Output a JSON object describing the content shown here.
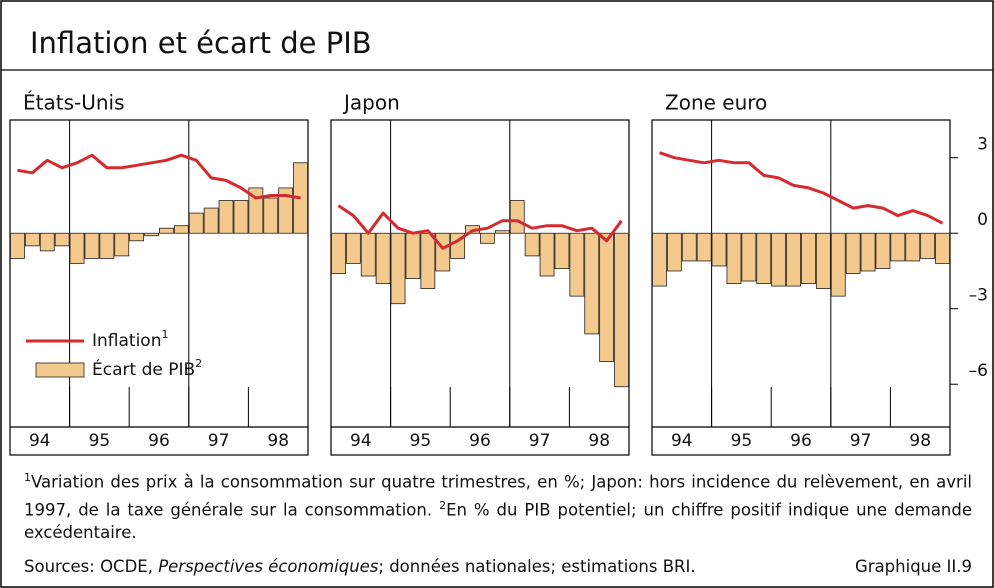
{
  "title": "Inflation et écart de PIB",
  "chart_data": [
    {
      "type": "combo",
      "title": "États-Unis",
      "legend": "lower left",
      "x": [
        1994.125,
        1994.375,
        1994.625,
        1994.875,
        1995.125,
        1995.375,
        1995.625,
        1995.875,
        1996.125,
        1996.375,
        1996.625,
        1996.875,
        1997.125,
        1997.375,
        1997.625,
        1997.875,
        1998.125,
        1998.375,
        1998.625,
        1998.875
      ],
      "xlim": [
        1994,
        1999
      ],
      "xticks": [
        {
          "value": 1994.5,
          "label": "94"
        },
        {
          "value": 1995.5,
          "label": "95"
        },
        {
          "value": 1996.5,
          "label": "96"
        },
        {
          "value": 1997.5,
          "label": "97"
        },
        {
          "value": 1998.5,
          "label": "98"
        }
      ],
      "xminor": [
        1995,
        1996,
        1997,
        1998
      ],
      "vlines": [
        1995,
        1997
      ],
      "ylim": [
        -7.7,
        4.5
      ],
      "series": [
        {
          "name": "Écart de PIB",
          "note": "2",
          "type": "bar",
          "color": "#f4c98e",
          "values": [
            -1.0,
            -0.5,
            -0.7,
            -0.5,
            -1.2,
            -1.0,
            -1.0,
            -0.9,
            -0.3,
            -0.1,
            0.2,
            0.3,
            0.8,
            1.0,
            1.3,
            1.3,
            1.8,
            1.4,
            1.8,
            2.8
          ]
        },
        {
          "name": "Inflation",
          "note": "1",
          "type": "line",
          "color": "#d42a30",
          "values": [
            2.5,
            2.4,
            2.9,
            2.6,
            2.8,
            3.1,
            2.6,
            2.6,
            2.7,
            2.8,
            2.9,
            3.1,
            2.9,
            2.2,
            2.1,
            1.8,
            1.4,
            1.5,
            1.5,
            1.4
          ]
        }
      ]
    },
    {
      "type": "combo",
      "title": "Japon",
      "x": [
        1994.125,
        1994.375,
        1994.625,
        1994.875,
        1995.125,
        1995.375,
        1995.625,
        1995.875,
        1996.125,
        1996.375,
        1996.625,
        1996.875,
        1997.125,
        1997.375,
        1997.625,
        1997.875,
        1998.125,
        1998.375,
        1998.625,
        1998.875
      ],
      "xlim": [
        1994,
        1999
      ],
      "xticks": [
        {
          "value": 1994.5,
          "label": "94"
        },
        {
          "value": 1995.5,
          "label": "95"
        },
        {
          "value": 1996.5,
          "label": "96"
        },
        {
          "value": 1997.5,
          "label": "97"
        },
        {
          "value": 1998.5,
          "label": "98"
        }
      ],
      "xminor": [
        1995,
        1996,
        1997,
        1998
      ],
      "vlines": [
        1995,
        1997
      ],
      "ylim": [
        -7.7,
        4.5
      ],
      "series": [
        {
          "type": "bar",
          "color": "#f4c98e",
          "values": [
            -1.6,
            -1.2,
            -1.7,
            -2.0,
            -2.8,
            -1.8,
            -2.2,
            -1.5,
            -1.0,
            0.3,
            -0.4,
            0.1,
            1.3,
            -0.9,
            -1.7,
            -1.4,
            -2.5,
            -4.0,
            -5.1,
            -6.1
          ]
        },
        {
          "type": "line",
          "color": "#d42a30",
          "values": [
            1.1,
            0.7,
            0.0,
            0.8,
            0.2,
            0.0,
            0.1,
            -0.6,
            -0.3,
            0.1,
            0.2,
            0.5,
            0.5,
            0.2,
            0.3,
            0.3,
            0.1,
            0.2,
            -0.3,
            0.5
          ]
        }
      ]
    },
    {
      "type": "combo",
      "title": "Zone euro",
      "x": [
        1994.125,
        1994.375,
        1994.625,
        1994.875,
        1995.125,
        1995.375,
        1995.625,
        1995.875,
        1996.125,
        1996.375,
        1996.625,
        1996.875,
        1997.125,
        1997.375,
        1997.625,
        1997.875,
        1998.125,
        1998.375,
        1998.625,
        1998.875
      ],
      "xlim": [
        1994,
        1999
      ],
      "xticks": [
        {
          "value": 1994.5,
          "label": "94"
        },
        {
          "value": 1995.5,
          "label": "95"
        },
        {
          "value": 1996.5,
          "label": "96"
        },
        {
          "value": 1997.5,
          "label": "97"
        },
        {
          "value": 1998.5,
          "label": "98"
        }
      ],
      "xminor": [
        1995,
        1996,
        1997,
        1998
      ],
      "vlines": [
        1995,
        1997
      ],
      "ylim": [
        -7.7,
        4.5
      ],
      "yticks": [
        3,
        0,
        {
          "value": -3,
          "label": "–3"
        },
        {
          "value": -6,
          "label": "–6"
        }
      ],
      "series": [
        {
          "type": "bar",
          "color": "#f4c98e",
          "values": [
            -2.1,
            -1.5,
            -1.1,
            -1.1,
            -1.3,
            -2.0,
            -1.9,
            -2.0,
            -2.1,
            -2.1,
            -2.0,
            -2.2,
            -2.5,
            -1.6,
            -1.5,
            -1.4,
            -1.1,
            -1.1,
            -1.0,
            -1.2
          ]
        },
        {
          "type": "line",
          "color": "#d42a30",
          "values": [
            3.2,
            3.0,
            2.9,
            2.8,
            2.9,
            2.8,
            2.8,
            2.3,
            2.2,
            1.9,
            1.8,
            1.6,
            1.3,
            1.0,
            1.1,
            1.0,
            0.7,
            0.9,
            0.7,
            0.4
          ]
        }
      ]
    }
  ],
  "footnotes": [
    {
      "mark": "1",
      "text": "Variation des prix à la consommation sur quatre trimestres, en %; Japon: hors incidence du relèvement, en avril 1997, de la taxe générale sur la consommation."
    },
    {
      "mark": "2",
      "text": "En % du PIB potentiel; un chiffre positif indique une demande excédentaire."
    }
  ],
  "sources": [
    {
      "text": "Sources: OCDE, "
    },
    {
      "text": "Perspectives économiques",
      "italic": true
    },
    {
      "text": "; données nationales; estimations BRI."
    }
  ],
  "figure_label": "Graphique II.9"
}
